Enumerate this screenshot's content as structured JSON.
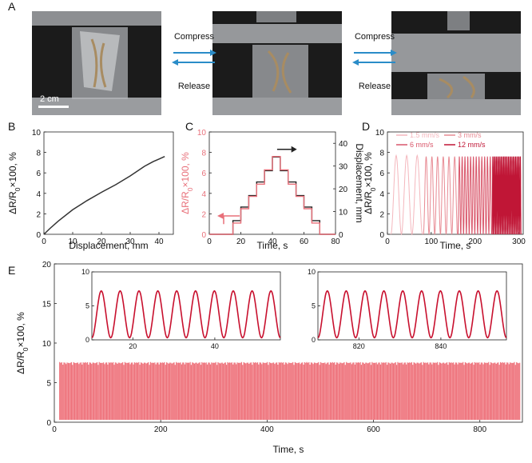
{
  "panel_labels": {
    "A": "A",
    "B": "B",
    "C": "C",
    "D": "D",
    "E": "E"
  },
  "panel_a": {
    "scale_bar": "2 cm",
    "transitions": [
      {
        "top": "Compress",
        "bottom": "Release"
      },
      {
        "top": "Compress",
        "bottom": "Release"
      }
    ],
    "colors": {
      "arrow": "#2a8cc8"
    }
  },
  "chart_data": [
    {
      "id": "B",
      "type": "line",
      "xlabel": "Displacement, mm",
      "ylabel": "ΔR/R0×100, %",
      "xlim": [
        0,
        45
      ],
      "ylim": [
        0,
        10
      ],
      "xticks": [
        0,
        10,
        20,
        30,
        40
      ],
      "yticks": [
        0,
        2,
        4,
        6,
        8,
        10
      ],
      "series": [
        {
          "color": "#333333",
          "x": [
            0,
            2,
            5,
            10,
            15,
            20,
            25,
            30,
            35,
            38,
            40,
            42
          ],
          "y": [
            0,
            0.55,
            1.3,
            2.4,
            3.3,
            4.1,
            4.85,
            5.7,
            6.65,
            7.1,
            7.35,
            7.6
          ]
        }
      ]
    },
    {
      "id": "C",
      "type": "line",
      "xlabel": "Time, s",
      "ylabel": "ΔR/R0×100, %",
      "ylabel_right": "Displacement, mm",
      "xlim": [
        0,
        80
      ],
      "ylim": [
        0,
        10
      ],
      "ylim_right": [
        0,
        45
      ],
      "xticks": [
        0,
        20,
        40,
        60,
        80
      ],
      "yticks": [
        0,
        2,
        4,
        6,
        8,
        10
      ],
      "yticks_right": [
        0,
        10,
        20,
        30,
        40
      ],
      "series": [
        {
          "axis": "left",
          "color": "#e8707a",
          "x": [
            0,
            15,
            15,
            20,
            20,
            25,
            25,
            30,
            30,
            35,
            35,
            40,
            40,
            45,
            45,
            50,
            50,
            55,
            55,
            60,
            60,
            65,
            65,
            70,
            70,
            80
          ],
          "y": [
            0,
            0,
            1.1,
            1.1,
            2.5,
            2.5,
            3.7,
            3.7,
            4.9,
            4.9,
            6.3,
            6.3,
            7.6,
            7.6,
            6.3,
            6.3,
            4.9,
            4.9,
            3.7,
            3.7,
            2.5,
            2.5,
            1.1,
            1.1,
            0,
            0
          ]
        },
        {
          "axis": "right",
          "color": "#222222",
          "x": [
            0,
            15,
            15,
            20,
            20,
            25,
            25,
            30,
            30,
            35,
            35,
            40,
            40,
            45,
            45,
            50,
            50,
            55,
            55,
            60,
            60,
            65,
            65,
            70,
            70,
            80
          ],
          "y": [
            0,
            0,
            6,
            6,
            12,
            12,
            17,
            17,
            23,
            23,
            28,
            28,
            34,
            34,
            28,
            28,
            23,
            23,
            17,
            17,
            12,
            12,
            6,
            6,
            0,
            0
          ]
        }
      ]
    },
    {
      "id": "D",
      "type": "line",
      "xlabel": "Time, s",
      "ylabel": "ΔR/R0×100, %",
      "xlim": [
        0,
        310
      ],
      "ylim": [
        0,
        10
      ],
      "xticks": [
        0,
        100,
        200,
        300
      ],
      "yticks": [
        0,
        2,
        4,
        6,
        8,
        10
      ],
      "series": [
        {
          "name": "1.5 mm/s",
          "color": "#f4b7bd",
          "x0": 8,
          "x1": 80,
          "cycles": 3,
          "amp": 7.7
        },
        {
          "name": "3 mm/s",
          "color": "#e88a93",
          "x0": 82,
          "x1": 160,
          "cycles": 6,
          "amp": 7.6
        },
        {
          "name": "6 mm/s",
          "color": "#d9566a",
          "x0": 161,
          "x1": 238,
          "cycles": 12,
          "amp": 7.6
        },
        {
          "name": "12 mm/s",
          "color": "#c01636",
          "x0": 239,
          "x1": 305,
          "cycles": 24,
          "amp": 7.6
        }
      ]
    },
    {
      "id": "E",
      "type": "area",
      "xlabel": "Time, s",
      "ylabel": "ΔR/R0×100, %",
      "xlim": [
        0,
        880
      ],
      "ylim": [
        0,
        20
      ],
      "xticks": [
        0,
        200,
        400,
        600,
        800
      ],
      "yticks": [
        0,
        5,
        10,
        15,
        20
      ],
      "series": [
        {
          "color": "#ee737c",
          "x0": 10,
          "x1": 875,
          "min": 0.3,
          "max": 7.6
        }
      ],
      "insets": [
        {
          "xlim": [
            10,
            56
          ],
          "ylim": [
            0,
            10
          ],
          "xticks": [
            20,
            40
          ],
          "yticks": [
            0,
            5,
            10
          ],
          "color": "#c8102e",
          "x0": 10,
          "x1": 56,
          "cycles": 10,
          "amp": 6.9
        },
        {
          "xlim": [
            810,
            856
          ],
          "ylim": [
            0,
            10
          ],
          "xticks": [
            820,
            840
          ],
          "yticks": [
            0,
            5,
            10
          ],
          "color": "#c8102e",
          "x0": 810,
          "x1": 856,
          "cycles": 10,
          "amp": 6.9
        }
      ]
    }
  ]
}
